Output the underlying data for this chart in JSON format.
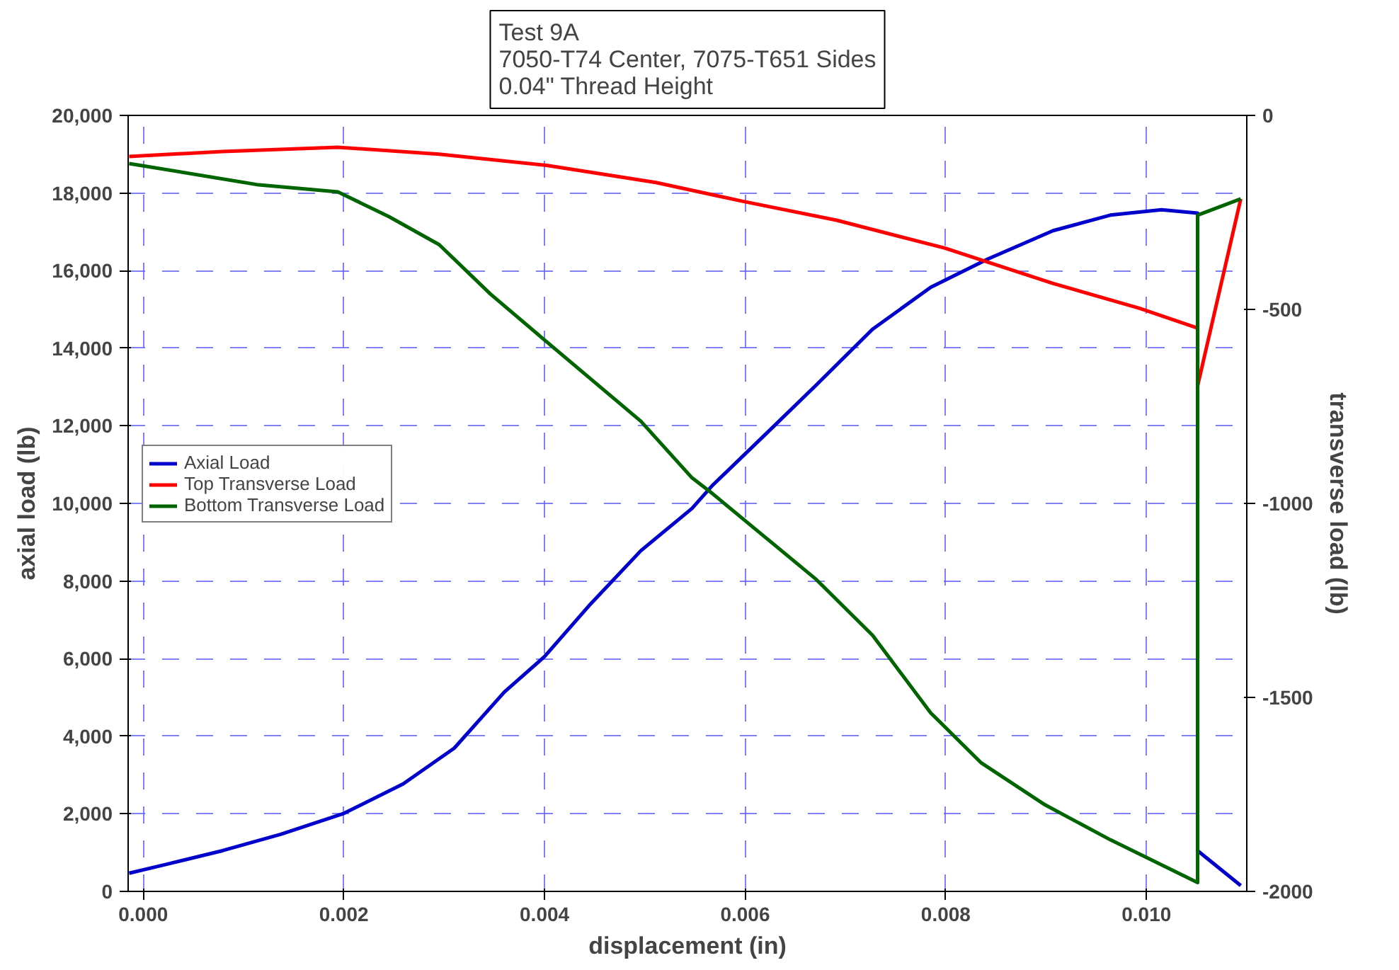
{
  "chart_data": {
    "type": "line",
    "title": "Test 9A\n7050-T74 Center, 7075-T651 Sides\n0.04\" Thread Height",
    "xlabel": "displacement (in)",
    "ylabel": "axial load (lb)",
    "y2label": "transverse load (lb)",
    "xlim": [
      -0.00015,
      0.011
    ],
    "ylim": [
      0,
      20000
    ],
    "y2lim": [
      -2000,
      0
    ],
    "xticks": [
      {
        "value": 0,
        "label": "0.000"
      },
      {
        "value": 0.002,
        "label": "0.002"
      },
      {
        "value": 0.004,
        "label": "0.004"
      },
      {
        "value": 0.006,
        "label": "0.006"
      },
      {
        "value": 0.008,
        "label": "0.008"
      },
      {
        "value": 0.01,
        "label": "0.010"
      }
    ],
    "yticks": [
      0,
      {
        "value": 2000,
        "label": "2,000"
      },
      {
        "value": 4000,
        "label": "4,000"
      },
      {
        "value": 6000,
        "label": "6,000"
      },
      {
        "value": 8000,
        "label": "8,000"
      },
      {
        "value": 10000,
        "label": "10,000"
      },
      {
        "value": 12000,
        "label": "12,000"
      },
      {
        "value": 14000,
        "label": "14,000"
      },
      {
        "value": 16000,
        "label": "16,000"
      },
      {
        "value": 18000,
        "label": "18,000"
      },
      {
        "value": 20000,
        "label": "20,000"
      }
    ],
    "y2ticks": [
      -2000,
      -1500,
      -1000,
      -500,
      0
    ],
    "grid": true,
    "legend": "left",
    "line_style": "solid",
    "series": [
      {
        "name": "Axial Load",
        "color": "#0000cc",
        "x": [
          -0.00014,
          0.00022,
          0.00079,
          0.00137,
          0.002,
          0.00259,
          0.0031,
          0.0036,
          0.004,
          0.00446,
          0.00496,
          0.00547,
          0.00568,
          0.00619,
          0.0067,
          0.00727,
          0.00785,
          0.00842,
          0.00907,
          0.00964,
          0.01015,
          0.01051,
          0.01051,
          0.01094
        ],
        "values": [
          470,
          690,
          1050,
          1470,
          2010,
          2770,
          3690,
          5140,
          6050,
          7410,
          8780,
          9870,
          10480,
          11750,
          13030,
          14490,
          15570,
          16300,
          17030,
          17430,
          17570,
          17480,
          1050,
          150
        ]
      },
      {
        "name": "Top Transverse Load",
        "color": "#ff0000",
        "axis": "y2",
        "x": [
          -0.00014,
          0.00079,
          0.00194,
          0.00295,
          0.00403,
          0.00511,
          0.00597,
          0.00691,
          0.00799,
          0.00907,
          0.00993,
          0.01051,
          0.01051,
          0.01094
        ],
        "values": [
          -106,
          -93,
          -82,
          -100,
          -129,
          -173,
          -221,
          -270,
          -342,
          -433,
          -497,
          -548,
          -697,
          -215
        ]
      },
      {
        "name": "Bottom Transverse Load",
        "color": "#006400",
        "axis": "y2",
        "x": [
          -0.00014,
          0.00115,
          0.00194,
          0.00245,
          0.00295,
          0.00346,
          0.00396,
          0.00446,
          0.00496,
          0.00547,
          0.00568,
          0.00619,
          0.0067,
          0.00727,
          0.00785,
          0.00835,
          0.00899,
          0.00964,
          0.01051,
          0.01051,
          0.01094
        ],
        "values": [
          -124,
          -179,
          -197,
          -261,
          -333,
          -460,
          -570,
          -679,
          -788,
          -934,
          -976,
          -1085,
          -1194,
          -1340,
          -1540,
          -1668,
          -1777,
          -1867,
          -1977,
          -257,
          -215
        ]
      }
    ]
  }
}
